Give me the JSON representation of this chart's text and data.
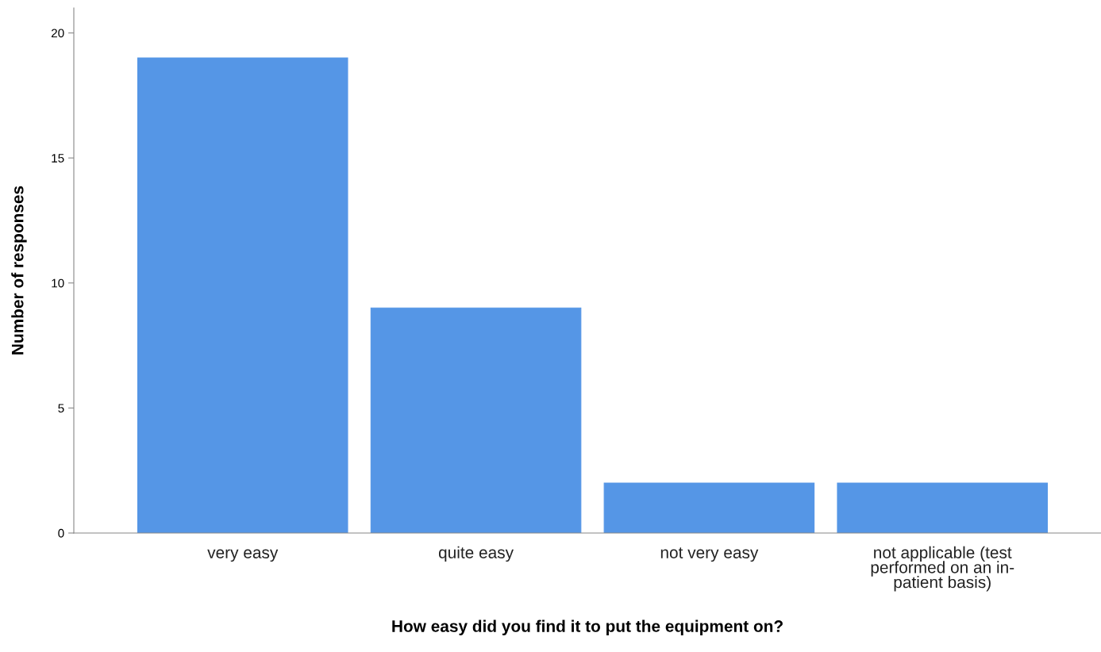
{
  "chart_data": {
    "type": "bar",
    "xlabel": "How easy did you find it to put the equipment on?",
    "ylabel": "Number of responses",
    "categories": [
      "very easy",
      "quite easy",
      "not very easy",
      "not applicable (test\nperformed on an in-\npatient basis)"
    ],
    "values": [
      19,
      9,
      2,
      2
    ],
    "color": "#5596e6",
    "ylim": [
      0,
      21
    ],
    "yticks": [
      0,
      5,
      10,
      15,
      20
    ],
    "grid": false,
    "legend": false
  }
}
